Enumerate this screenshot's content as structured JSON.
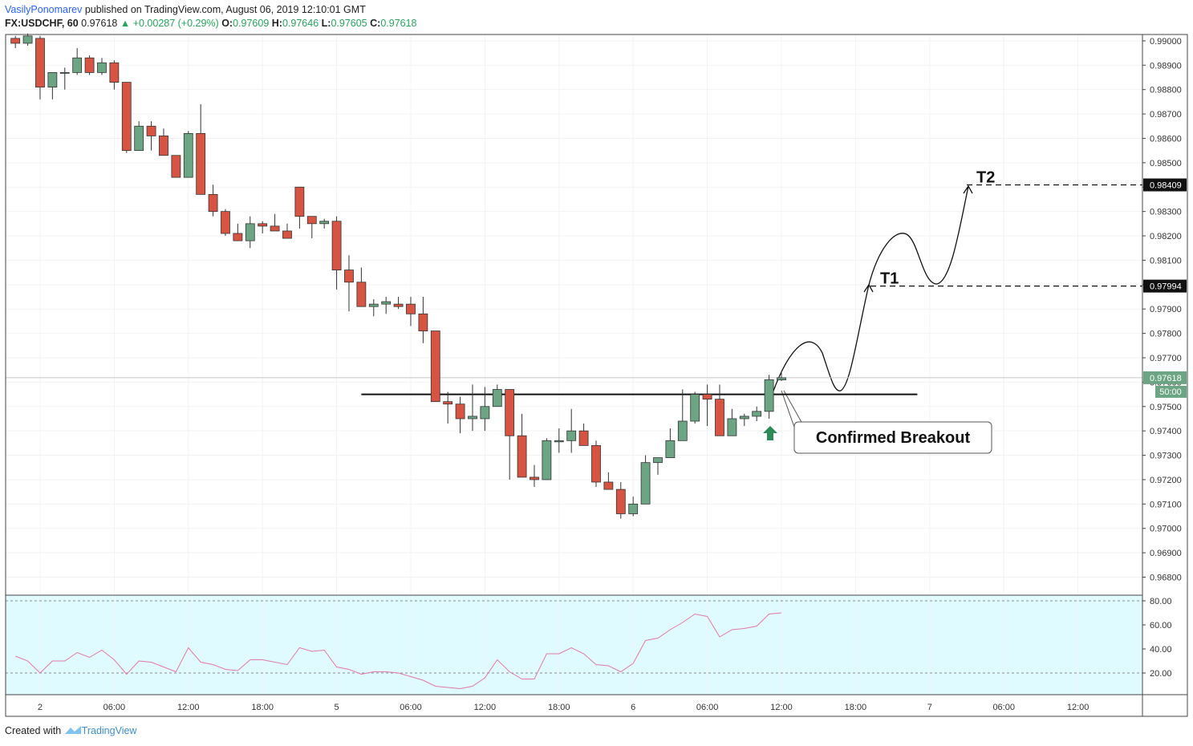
{
  "header": {
    "author": "VasilyPonomarev",
    "published": "published on TradingView.com, August 06, 2019 12:10:01 GMT",
    "symbol": "FX:USDCHF, 60",
    "price": "0.97618",
    "change": "▲ +0.00287 (+0.29%)",
    "ohlc": [
      {
        "label": "O:",
        "value": "0.97609"
      },
      {
        "label": "H:",
        "value": "0.97646"
      },
      {
        "label": "L:",
        "value": "0.97605"
      },
      {
        "label": "C:",
        "value": "0.97618"
      }
    ]
  },
  "footer": {
    "text": "Created with",
    "brand": "TradingView"
  },
  "chart_data": [
    {
      "type": "candlestick",
      "up_color": "#6ba583",
      "down_color": "#d75442",
      "x": [
        -2,
        -1,
        0,
        1,
        2,
        3,
        4,
        5,
        6,
        7,
        8,
        9,
        10,
        11,
        12,
        13,
        14,
        15,
        16,
        17,
        18,
        19,
        20,
        21,
        22,
        23,
        24,
        25,
        26,
        27,
        28,
        29,
        30,
        31,
        32,
        33,
        34,
        35,
        36,
        37,
        38,
        39,
        40,
        41,
        42,
        43,
        44,
        45,
        46,
        47,
        48,
        49,
        50,
        51,
        52,
        53,
        54,
        55,
        56,
        57,
        58,
        59,
        60
      ],
      "open": [
        0.9901,
        0.9899,
        0.9901,
        0.9881,
        0.9887,
        0.9887,
        0.9893,
        0.9887,
        0.9891,
        0.9883,
        0.9855,
        0.9865,
        0.9861,
        0.9853,
        0.9844,
        0.9862,
        0.9837,
        0.983,
        0.9821,
        0.9818,
        0.9825,
        0.9824,
        0.9822,
        0.984,
        0.9828,
        0.9825,
        0.9826,
        0.9806,
        0.9801,
        0.9791,
        0.9792,
        0.9792,
        0.9792,
        0.9788,
        0.9781,
        0.9752,
        0.9751,
        0.9745,
        0.9745,
        0.975,
        0.9757,
        0.9738,
        0.9721,
        0.972,
        0.97355,
        0.9736,
        0.974,
        0.9734,
        0.9719,
        0.9716,
        0.9706,
        0.971,
        0.9727,
        0.9729,
        0.9736,
        0.9744,
        0.9755,
        0.9753,
        0.9738,
        0.9745,
        0.9746,
        0.9748,
        0.97609
      ],
      "high": [
        0.9902,
        0.9903,
        0.9902,
        0.9887,
        0.9889,
        0.9897,
        0.9894,
        0.9893,
        0.9892,
        0.9883,
        0.9867,
        0.9867,
        0.9864,
        0.9853,
        0.9863,
        0.9874,
        0.9841,
        0.9831,
        0.9825,
        0.9828,
        0.9826,
        0.9829,
        0.9825,
        0.984,
        0.9828,
        0.9827,
        0.9828,
        0.9812,
        0.9807,
        0.9794,
        0.9795,
        0.9795,
        0.9795,
        0.9795,
        0.9781,
        0.9756,
        0.9754,
        0.9759,
        0.9758,
        0.9759,
        0.9757,
        0.9747,
        0.9726,
        0.9737,
        0.9741,
        0.9749,
        0.9743,
        0.9736,
        0.9723,
        0.9719,
        0.9713,
        0.973,
        0.9729,
        0.9741,
        0.9757,
        0.9756,
        0.9759,
        0.9759,
        0.9749,
        0.9747,
        0.975,
        0.9763,
        0.97646
      ],
      "low": [
        0.9897,
        0.9898,
        0.9876,
        0.9876,
        0.988,
        0.9886,
        0.9886,
        0.9886,
        0.988,
        0.9854,
        0.9855,
        0.9855,
        0.9853,
        0.9844,
        0.9844,
        0.9837,
        0.9828,
        0.982,
        0.9818,
        0.9815,
        0.9821,
        0.9822,
        0.9819,
        0.9823,
        0.9819,
        0.9823,
        0.9798,
        0.9789,
        0.9791,
        0.9787,
        0.9788,
        0.979,
        0.9783,
        0.9776,
        0.9752,
        0.9743,
        0.9739,
        0.974,
        0.974,
        0.975,
        0.972,
        0.9721,
        0.9717,
        0.972,
        0.9731,
        0.9731,
        0.9734,
        0.9717,
        0.9716,
        0.9704,
        0.9705,
        0.971,
        0.9722,
        0.9729,
        0.9736,
        0.9743,
        0.9742,
        0.9738,
        0.9738,
        0.9742,
        0.9744,
        0.9745,
        0.97605
      ],
      "close": [
        0.9899,
        0.9902,
        0.9881,
        0.9887,
        0.9887,
        0.9893,
        0.9887,
        0.9891,
        0.9883,
        0.9855,
        0.9865,
        0.9861,
        0.9853,
        0.9844,
        0.9862,
        0.9837,
        0.983,
        0.9821,
        0.9818,
        0.9825,
        0.9824,
        0.9822,
        0.9819,
        0.9828,
        0.9825,
        0.9826,
        0.9806,
        0.9801,
        0.9791,
        0.9792,
        0.9793,
        0.9791,
        0.9788,
        0.9781,
        0.9752,
        0.9751,
        0.9745,
        0.9746,
        0.975,
        0.9757,
        0.9738,
        0.9721,
        0.972,
        0.9736,
        0.9736,
        0.974,
        0.9734,
        0.9719,
        0.9716,
        0.9706,
        0.971,
        0.9727,
        0.9729,
        0.9736,
        0.9744,
        0.9755,
        0.9753,
        0.9738,
        0.9745,
        0.9746,
        0.9748,
        0.9761,
        0.97618
      ],
      "xlim": [
        -2.79,
        89.22
      ],
      "ylim": [
        0.96726,
        0.99026
      ],
      "xticks": [
        {
          "value": 0,
          "label": "2"
        },
        {
          "value": 6,
          "label": "06:00"
        },
        {
          "value": 12,
          "label": "12:00"
        },
        {
          "value": 18,
          "label": "18:00"
        },
        {
          "value": 24,
          "label": "5"
        },
        {
          "value": 30,
          "label": "06:00"
        },
        {
          "value": 36,
          "label": "12:00"
        },
        {
          "value": 42,
          "label": "18:00"
        },
        {
          "value": 48,
          "label": "6"
        },
        {
          "value": 54,
          "label": "06:00"
        },
        {
          "value": 60,
          "label": "12:00"
        },
        {
          "value": 66,
          "label": "18:00"
        },
        {
          "value": 72,
          "label": "7"
        },
        {
          "value": 78,
          "label": "06:00"
        },
        {
          "value": 84,
          "label": "12:00"
        }
      ],
      "yticks": [
        {
          "value": 0.968,
          "label": "0.96800"
        },
        {
          "value": 0.969,
          "label": "0.96900"
        },
        {
          "value": 0.97,
          "label": "0.97000"
        },
        {
          "value": 0.971,
          "label": "0.97100"
        },
        {
          "value": 0.972,
          "label": "0.97200"
        },
        {
          "value": 0.973,
          "label": "0.97300"
        },
        {
          "value": 0.974,
          "label": "0.97400"
        },
        {
          "value": 0.975,
          "label": "0.97500"
        },
        {
          "value": 0.976,
          "label": "0.97600"
        },
        {
          "value": 0.977,
          "label": "0.97700"
        },
        {
          "value": 0.978,
          "label": "0.97800"
        },
        {
          "value": 0.979,
          "label": "0.97900"
        },
        {
          "value": 0.98,
          "label": "0.98000"
        },
        {
          "value": 0.981,
          "label": "0.98100"
        },
        {
          "value": 0.982,
          "label": "0.98200"
        },
        {
          "value": 0.983,
          "label": "0.98300"
        },
        {
          "value": 0.984,
          "label": "0.98400"
        },
        {
          "value": 0.985,
          "label": "0.98500"
        },
        {
          "value": 0.986,
          "label": "0.98600"
        },
        {
          "value": 0.987,
          "label": "0.98700"
        },
        {
          "value": 0.988,
          "label": "0.98800"
        },
        {
          "value": 0.989,
          "label": "0.98900"
        },
        {
          "value": 0.99,
          "label": "0.99000"
        }
      ],
      "grid": true,
      "last_price": 0.97618,
      "countdown": "50:00",
      "breakout": {
        "value": 0.9755,
        "label": "Confirmed Breakout"
      },
      "targets": [
        {
          "label": "T1",
          "value": 0.97994
        },
        {
          "label": "T2",
          "value": 0.98409
        }
      ]
    },
    {
      "type": "line",
      "color": "#e377a8",
      "x": [
        -2,
        -1,
        0,
        1,
        2,
        3,
        4,
        5,
        6,
        7,
        8,
        9,
        10,
        11,
        12,
        13,
        14,
        15,
        16,
        17,
        18,
        19,
        20,
        21,
        22,
        23,
        24,
        25,
        26,
        27,
        28,
        29,
        30,
        31,
        32,
        33,
        34,
        35,
        36,
        37,
        38,
        39,
        40,
        41,
        42,
        43,
        44,
        45,
        46,
        47,
        48,
        49,
        50,
        51,
        52,
        53,
        54,
        55,
        56,
        57,
        58,
        59,
        60
      ],
      "values": [
        34,
        30,
        20,
        30,
        30,
        37,
        33,
        39,
        31,
        19,
        30,
        29,
        25,
        21,
        41,
        29,
        27,
        23,
        22,
        31,
        31,
        29,
        27,
        41,
        38,
        39,
        25,
        23,
        19,
        21,
        21,
        20,
        17,
        14,
        9,
        8,
        7,
        9,
        16,
        31,
        21,
        15,
        15,
        36,
        36,
        41,
        36,
        27,
        26,
        21,
        28,
        47,
        49,
        56,
        62,
        69,
        67,
        50,
        56,
        57,
        59,
        69,
        70
      ],
      "xlim": [
        -2.79,
        89.22
      ],
      "ylim": [
        2,
        84.67
      ],
      "yticks": [
        {
          "value": 20,
          "label": "20.00"
        },
        {
          "value": 40,
          "label": "40.00"
        },
        {
          "value": 60,
          "label": "60.00"
        },
        {
          "value": 80,
          "label": "80.00"
        }
      ],
      "bands": [
        20,
        80
      ]
    }
  ]
}
